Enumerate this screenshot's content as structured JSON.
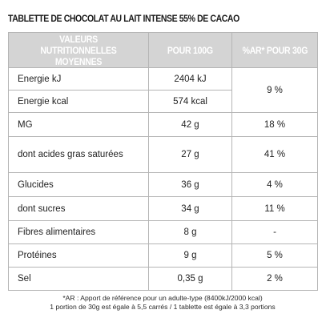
{
  "title": "TABLETTE DE CHOCOLAT AU LAIT INTENSE 55% DE CACAO",
  "headers": {
    "nutrients": "VALEURS NUTRITIONNELLES MOYENNES",
    "per100": "POUR 100G",
    "ar": "%AR* POUR 30G"
  },
  "rows": [
    {
      "label": "Energie kJ",
      "per100": "2404 kJ",
      "ar": "9 %"
    },
    {
      "label": "Energie kcal",
      "per100": "574 kcal",
      "ar": ""
    },
    {
      "label": "MG",
      "per100": "42 g",
      "ar": "18 %"
    },
    {
      "label": "dont acides gras saturées",
      "per100": "27 g",
      "ar": "41 %"
    },
    {
      "label": "Glucides",
      "per100": "36 g",
      "ar": "4 %"
    },
    {
      "label": "dont sucres",
      "per100": "34 g",
      "ar": "11 %"
    },
    {
      "label": "Fibres alimentaires",
      "per100": "8 g",
      "ar": "-"
    },
    {
      "label": "Protéines",
      "per100": "9 g",
      "ar": "5 %"
    },
    {
      "label": "Sel",
      "per100": "0,35 g",
      "ar": "2 %"
    }
  ],
  "footnote": {
    "line1": "*AR : Apport de référence pour un adulte-type (8400kJ/2000 kcal)",
    "line2": "1 portion de 30g est égale à 5,5 carrés / 1 tablette est égale à 3,3 portions"
  }
}
